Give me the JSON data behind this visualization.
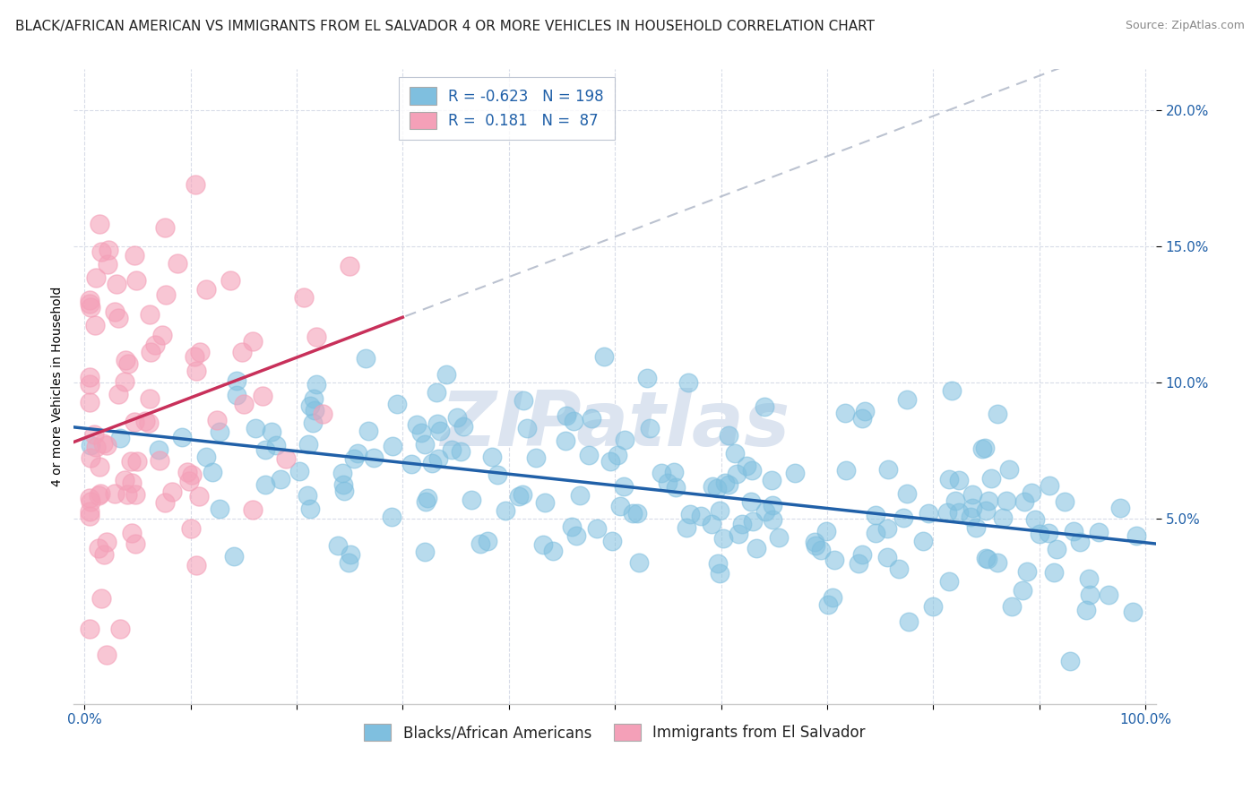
{
  "title": "BLACK/AFRICAN AMERICAN VS IMMIGRANTS FROM EL SALVADOR 4 OR MORE VEHICLES IN HOUSEHOLD CORRELATION CHART",
  "source": "Source: ZipAtlas.com",
  "ylabel": "4 or more Vehicles in Household",
  "legend_label_blue": "Blacks/African Americans",
  "legend_label_pink": "Immigrants from El Salvador",
  "legend_r_blue": "-0.623",
  "legend_n_blue": "198",
  "legend_r_pink": "0.181",
  "legend_n_pink": "87",
  "blue_color": "#7fbfdf",
  "pink_color": "#f4a0b8",
  "trend_blue_color": "#2060a8",
  "trend_pink_color": "#c8305a",
  "dash_color": "#b0b8c8",
  "watermark_text": "ZIPatlas",
  "watermark_color": "#dce4f0",
  "background_color": "#ffffff",
  "grid_color": "#d8dce8",
  "ytick_values": [
    0.05,
    0.1,
    0.15,
    0.2
  ],
  "xlim": [
    -0.01,
    1.01
  ],
  "ylim": [
    -0.018,
    0.215
  ],
  "title_fontsize": 11,
  "axis_label_fontsize": 10,
  "tick_fontsize": 11,
  "legend_fontsize": 12,
  "blue_seed": 12,
  "pink_seed": 99
}
